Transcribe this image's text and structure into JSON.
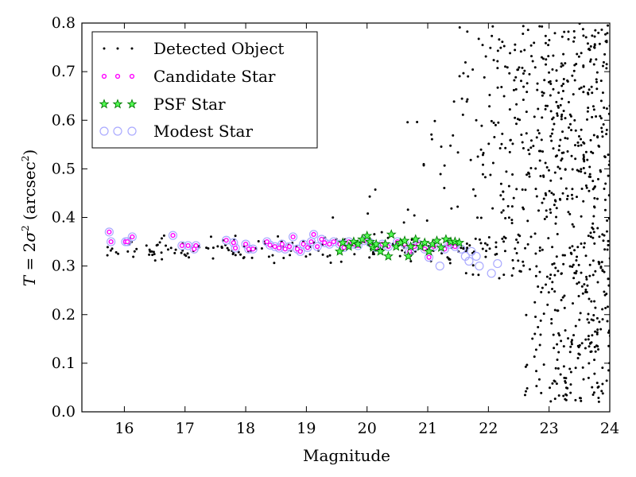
{
  "chart_data": {
    "type": "scatter",
    "title": "",
    "xlabel": "Magnitude",
    "ylabel": {
      "prefix": "T",
      "eq": " = 2",
      "sigma": "σ",
      "sup": "2",
      "unit_open": " (arcsec",
      "unit_sup": "2",
      "unit_close": ")"
    },
    "xlim": [
      15.3,
      24.0
    ],
    "ylim": [
      0.0,
      0.8
    ],
    "x_ticks": [
      16,
      17,
      18,
      19,
      20,
      21,
      22,
      23,
      24
    ],
    "y_ticks": [
      0.0,
      0.1,
      0.2,
      0.3,
      0.4,
      0.5,
      0.6,
      0.7,
      0.8
    ],
    "x_tick_labels": [
      "16",
      "17",
      "18",
      "19",
      "20",
      "21",
      "22",
      "23",
      "24"
    ],
    "y_tick_labels": [
      "0.0",
      "0.1",
      "0.2",
      "0.3",
      "0.4",
      "0.5",
      "0.6",
      "0.7",
      "0.8"
    ],
    "grid": false,
    "legend": {
      "placement": "top-left",
      "entries": [
        {
          "label": "Detected Object",
          "marker": "dot",
          "color": "#000000"
        },
        {
          "label": "Candidate Star",
          "marker": "small-circle",
          "color": "#ff00ff"
        },
        {
          "label": "PSF Star",
          "marker": "star",
          "color": "#00aa00"
        },
        {
          "label": "Modest Star",
          "marker": "open-circle",
          "color": "#aaaaff"
        }
      ]
    },
    "series": [
      {
        "name": "Modest Star",
        "points": [
          [
            15.75,
            0.37
          ],
          [
            15.78,
            0.35
          ],
          [
            16.02,
            0.35
          ],
          [
            16.05,
            0.35
          ],
          [
            16.13,
            0.36
          ],
          [
            16.8,
            0.363
          ],
          [
            16.95,
            0.342
          ],
          [
            17.05,
            0.342
          ],
          [
            17.15,
            0.335
          ],
          [
            17.18,
            0.342
          ],
          [
            17.68,
            0.353
          ],
          [
            17.8,
            0.348
          ],
          [
            17.83,
            0.337
          ],
          [
            18.0,
            0.345
          ],
          [
            18.05,
            0.335
          ],
          [
            18.12,
            0.335
          ],
          [
            18.35,
            0.35
          ],
          [
            18.4,
            0.343
          ],
          [
            18.48,
            0.34
          ],
          [
            18.55,
            0.337
          ],
          [
            18.6,
            0.345
          ],
          [
            18.65,
            0.335
          ],
          [
            18.72,
            0.34
          ],
          [
            18.78,
            0.36
          ],
          [
            18.85,
            0.335
          ],
          [
            18.9,
            0.33
          ],
          [
            18.95,
            0.345
          ],
          [
            19.02,
            0.338
          ],
          [
            19.08,
            0.35
          ],
          [
            19.12,
            0.365
          ],
          [
            19.18,
            0.34
          ],
          [
            19.25,
            0.355
          ],
          [
            19.3,
            0.348
          ],
          [
            19.38,
            0.345
          ],
          [
            19.45,
            0.35
          ],
          [
            19.55,
            0.345
          ],
          [
            19.62,
            0.338
          ],
          [
            19.7,
            0.35
          ],
          [
            19.78,
            0.345
          ],
          [
            19.85,
            0.342
          ],
          [
            19.95,
            0.352
          ],
          [
            20.05,
            0.348
          ],
          [
            20.15,
            0.338
          ],
          [
            20.25,
            0.345
          ],
          [
            20.35,
            0.34
          ],
          [
            20.5,
            0.35
          ],
          [
            20.62,
            0.345
          ],
          [
            20.7,
            0.33
          ],
          [
            20.78,
            0.34
          ],
          [
            20.85,
            0.345
          ],
          [
            20.95,
            0.335
          ],
          [
            21.02,
            0.318
          ],
          [
            21.1,
            0.34
          ],
          [
            21.2,
            0.3
          ],
          [
            21.28,
            0.335
          ],
          [
            21.35,
            0.345
          ],
          [
            21.45,
            0.34
          ],
          [
            21.55,
            0.335
          ],
          [
            21.62,
            0.32
          ],
          [
            21.68,
            0.31
          ],
          [
            21.72,
            0.33
          ],
          [
            21.8,
            0.32
          ],
          [
            21.85,
            0.3
          ],
          [
            22.05,
            0.285
          ],
          [
            22.15,
            0.305
          ]
        ]
      },
      {
        "name": "Candidate Star",
        "points": [
          [
            15.75,
            0.37
          ],
          [
            15.78,
            0.35
          ],
          [
            16.02,
            0.35
          ],
          [
            16.05,
            0.35
          ],
          [
            16.13,
            0.36
          ],
          [
            16.8,
            0.363
          ],
          [
            16.95,
            0.342
          ],
          [
            17.05,
            0.342
          ],
          [
            17.15,
            0.335
          ],
          [
            17.18,
            0.342
          ],
          [
            17.68,
            0.353
          ],
          [
            17.8,
            0.348
          ],
          [
            17.83,
            0.337
          ],
          [
            18.0,
            0.345
          ],
          [
            18.05,
            0.335
          ],
          [
            18.12,
            0.335
          ],
          [
            18.35,
            0.35
          ],
          [
            18.4,
            0.343
          ],
          [
            18.48,
            0.34
          ],
          [
            18.55,
            0.337
          ],
          [
            18.6,
            0.345
          ],
          [
            18.65,
            0.335
          ],
          [
            18.72,
            0.34
          ],
          [
            18.78,
            0.36
          ],
          [
            18.85,
            0.335
          ],
          [
            18.9,
            0.33
          ],
          [
            18.95,
            0.345
          ],
          [
            19.02,
            0.338
          ],
          [
            19.08,
            0.35
          ],
          [
            19.12,
            0.365
          ],
          [
            19.18,
            0.34
          ],
          [
            19.25,
            0.355
          ],
          [
            19.3,
            0.348
          ],
          [
            19.38,
            0.345
          ],
          [
            19.45,
            0.35
          ],
          [
            19.55,
            0.345
          ],
          [
            19.62,
            0.338
          ],
          [
            19.7,
            0.35
          ],
          [
            19.78,
            0.345
          ],
          [
            19.85,
            0.342
          ],
          [
            19.95,
            0.352
          ],
          [
            20.05,
            0.348
          ],
          [
            20.15,
            0.338
          ],
          [
            20.25,
            0.345
          ],
          [
            20.35,
            0.34
          ],
          [
            20.5,
            0.35
          ],
          [
            20.62,
            0.345
          ],
          [
            20.7,
            0.33
          ],
          [
            20.78,
            0.34
          ],
          [
            20.85,
            0.345
          ],
          [
            20.95,
            0.335
          ],
          [
            21.02,
            0.318
          ],
          [
            21.1,
            0.34
          ],
          [
            21.28,
            0.335
          ],
          [
            21.35,
            0.345
          ],
          [
            21.45,
            0.34
          ]
        ]
      },
      {
        "name": "PSF Star",
        "points": [
          [
            19.55,
            0.33
          ],
          [
            19.6,
            0.348
          ],
          [
            19.7,
            0.34
          ],
          [
            19.78,
            0.35
          ],
          [
            19.85,
            0.345
          ],
          [
            19.92,
            0.355
          ],
          [
            20.0,
            0.362
          ],
          [
            20.05,
            0.35
          ],
          [
            20.1,
            0.338
          ],
          [
            20.15,
            0.345
          ],
          [
            20.22,
            0.33
          ],
          [
            20.3,
            0.345
          ],
          [
            20.35,
            0.32
          ],
          [
            20.4,
            0.365
          ],
          [
            20.48,
            0.34
          ],
          [
            20.55,
            0.348
          ],
          [
            20.62,
            0.352
          ],
          [
            20.68,
            0.32
          ],
          [
            20.72,
            0.34
          ],
          [
            20.8,
            0.355
          ],
          [
            20.88,
            0.34
          ],
          [
            20.95,
            0.348
          ],
          [
            21.02,
            0.33
          ],
          [
            21.08,
            0.345
          ],
          [
            21.15,
            0.352
          ],
          [
            21.22,
            0.338
          ],
          [
            21.3,
            0.355
          ],
          [
            21.38,
            0.35
          ],
          [
            21.45,
            0.35
          ],
          [
            21.52,
            0.348
          ]
        ]
      },
      {
        "name": "Detected Object",
        "generated": true,
        "count": 1400
      }
    ]
  }
}
